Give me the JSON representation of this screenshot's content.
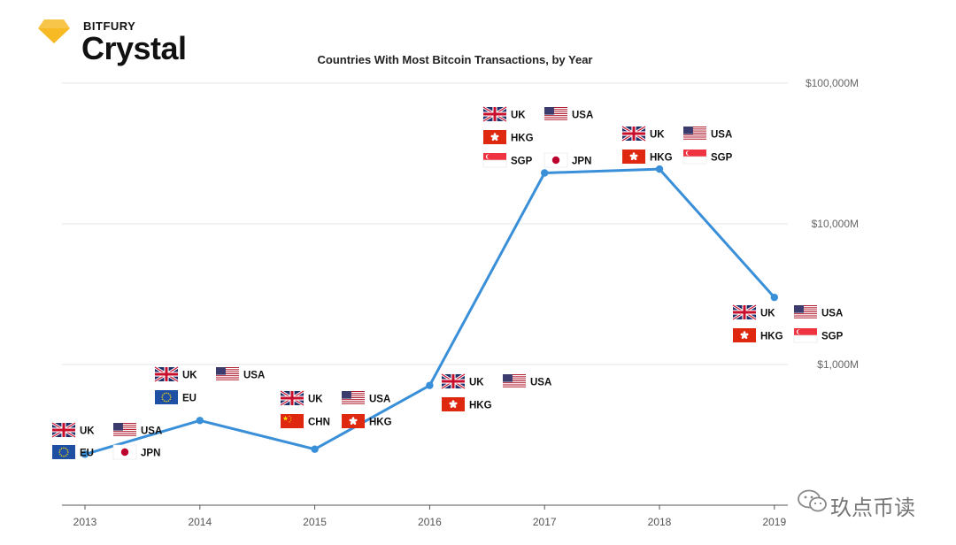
{
  "brand": {
    "small": "BITFURY",
    "name": "Crystal",
    "logo_color": "#f7b924",
    "logo_icon": "diamond-icon"
  },
  "watermark": {
    "text": "玖点币读",
    "icon": "wechat-icon"
  },
  "colors": {
    "line": "#3a8fd9",
    "grid": "#e6e6e6",
    "axis": "#555555",
    "uk_blue": "#1f2f6b",
    "uk_red": "#c8102e",
    "us_blue": "#3c3b6e",
    "us_red": "#b22234",
    "eu_blue": "#1f4fa3",
    "red_flag": "#de2910",
    "star": "#ffde00"
  },
  "chart_data": {
    "type": "line",
    "title": "Countries With Most Bitcoin Transactions, by Year",
    "x": [
      2013,
      2014,
      2015,
      2016,
      2017,
      2018,
      2019
    ],
    "yscale": "log",
    "ylim": [
      100,
      100000
    ],
    "yticks": [
      1000,
      10000,
      100000
    ],
    "ytick_labels": [
      "$1,000M",
      "$10,000M",
      "$100,000M"
    ],
    "xtick_labels": [
      "2013",
      "2014",
      "2015",
      "2016",
      "2017",
      "2018",
      "2019"
    ],
    "series": [
      {
        "values": [
          230,
          400,
          250,
          710,
          23000,
          24500,
          3000
        ]
      }
    ],
    "annotations": [
      {
        "year": 2013,
        "countries": [
          {
            "code": "UK",
            "label": "UK"
          },
          {
            "code": "USA",
            "label": "USA"
          },
          {
            "code": "EU",
            "label": "EU"
          },
          {
            "code": "JPN",
            "label": "JPN"
          }
        ]
      },
      {
        "year": 2014,
        "countries": [
          {
            "code": "UK",
            "label": "UK"
          },
          {
            "code": "USA",
            "label": "USA"
          },
          {
            "code": "EU",
            "label": "EU"
          }
        ]
      },
      {
        "year": 2015,
        "countries": [
          {
            "code": "UK",
            "label": "UK"
          },
          {
            "code": "USA",
            "label": "USA"
          },
          {
            "code": "CHN",
            "label": "CHN"
          },
          {
            "code": "HKG",
            "label": "HKG"
          }
        ]
      },
      {
        "year": 2016,
        "countries": [
          {
            "code": "UK",
            "label": "UK"
          },
          {
            "code": "USA",
            "label": "USA"
          },
          {
            "code": "HKG",
            "label": "HKG"
          }
        ]
      },
      {
        "year": 2017,
        "countries": [
          {
            "code": "UK",
            "label": "UK"
          },
          {
            "code": "USA",
            "label": "USA"
          },
          {
            "code": "HKG",
            "label": "HKG"
          },
          {
            "code": "SGP",
            "label": "SGP"
          },
          {
            "code": "JPN",
            "label": "JPN"
          }
        ]
      },
      {
        "year": 2018,
        "countries": [
          {
            "code": "UK",
            "label": "UK"
          },
          {
            "code": "USA",
            "label": "USA"
          },
          {
            "code": "HKG",
            "label": "HKG"
          },
          {
            "code": "SGP",
            "label": "SGP"
          }
        ]
      },
      {
        "year": 2019,
        "countries": [
          {
            "code": "UK",
            "label": "UK"
          },
          {
            "code": "USA",
            "label": "USA"
          },
          {
            "code": "HKG",
            "label": "HKG"
          },
          {
            "code": "SGP",
            "label": "SGP"
          }
        ]
      }
    ]
  }
}
